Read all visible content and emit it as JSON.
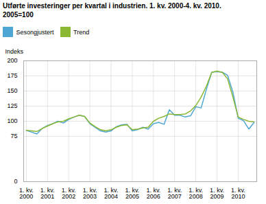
{
  "chart_data": {
    "type": "line",
    "title": "Utførte investeringer per kvartal i industrien. 1. kv. 2000-4. kv. 2010.",
    "subtitle": "2005=100",
    "ylabel": "Indeks",
    "categories": [
      "1. kv.\n2000",
      null,
      null,
      null,
      "1. kv.\n2001",
      null,
      null,
      null,
      "1. kv.\n2002",
      null,
      null,
      null,
      "1. kv.\n2003",
      null,
      null,
      null,
      "1. kv.\n2004",
      null,
      null,
      null,
      "1. kv.\n2005",
      null,
      null,
      null,
      "1. kv.\n2006",
      null,
      null,
      null,
      "1. kv.\n2007",
      null,
      null,
      null,
      "1. kv.\n2008",
      null,
      null,
      null,
      "1. kv.\n2009",
      null,
      null,
      null,
      "1. kv.\n2010",
      null,
      null,
      null
    ],
    "series": [
      {
        "name": "Sesongjustert",
        "color": "#4da6d4",
        "values": [
          85,
          82,
          79,
          88,
          93,
          96,
          100,
          97,
          103,
          107,
          110,
          108,
          96,
          90,
          84,
          82,
          84,
          91,
          94,
          95,
          84,
          86,
          90,
          87,
          96,
          98,
          95,
          119,
          110,
          110,
          107,
          109,
          124,
          122,
          153,
          181,
          182,
          181,
          176,
          148,
          105,
          101,
          87,
          98
        ]
      },
      {
        "name": "Trend",
        "color": "#8ab832",
        "values": [
          85,
          84,
          83,
          88,
          92,
          96,
          99,
          100,
          104,
          107,
          110,
          108,
          97,
          91,
          86,
          84,
          86,
          90,
          93,
          94,
          86,
          87,
          89,
          90,
          100,
          105,
          108,
          112,
          111,
          111,
          112,
          117,
          126,
          140,
          158,
          181,
          183,
          181,
          170,
          140,
          107,
          103,
          100,
          99
        ]
      }
    ],
    "ylim": [
      0,
      200
    ],
    "yticks": [
      0,
      75,
      100,
      125,
      150,
      175,
      200
    ],
    "grid": true,
    "legend": "upper left"
  }
}
